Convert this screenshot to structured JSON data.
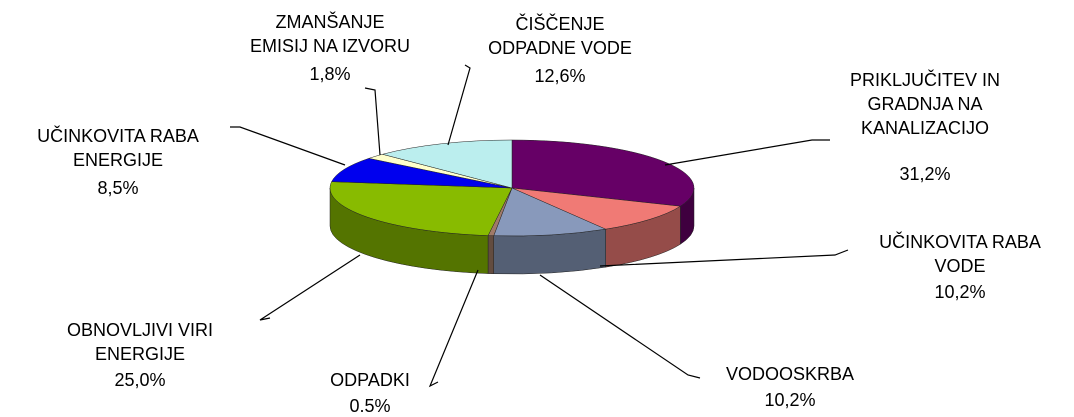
{
  "chart_data": {
    "type": "pie3d",
    "categories": [
      "PRIKLJUČITEV IN GRADNJA NA KANALIZACIJO",
      "UČINKOVITA RABA VODE",
      "VODOOSKRBA",
      "ODPADKI",
      "OBNOVLJIVI VIRI ENERGIJE",
      "UČINKOVITA RABA ENERGIJE",
      "ZMANŠANJE EMISIJ NA IZVORU",
      "ČIŠČENJE ODPADNE VODE"
    ],
    "values": [
      31.2,
      10.2,
      10.2,
      0.5,
      25.0,
      8.5,
      1.8,
      12.6
    ],
    "value_labels": [
      "31,2%",
      "10,2%",
      "10,2%",
      "0.5%",
      "25,0%",
      "8,5%",
      "1,8%",
      "12,6%"
    ],
    "colors": [
      "#660066",
      "#f07a75",
      "#8899bb",
      "#a07a68",
      "#88bb00",
      "#0000ee",
      "#ffffcc",
      "#bbeeee"
    ]
  }
}
